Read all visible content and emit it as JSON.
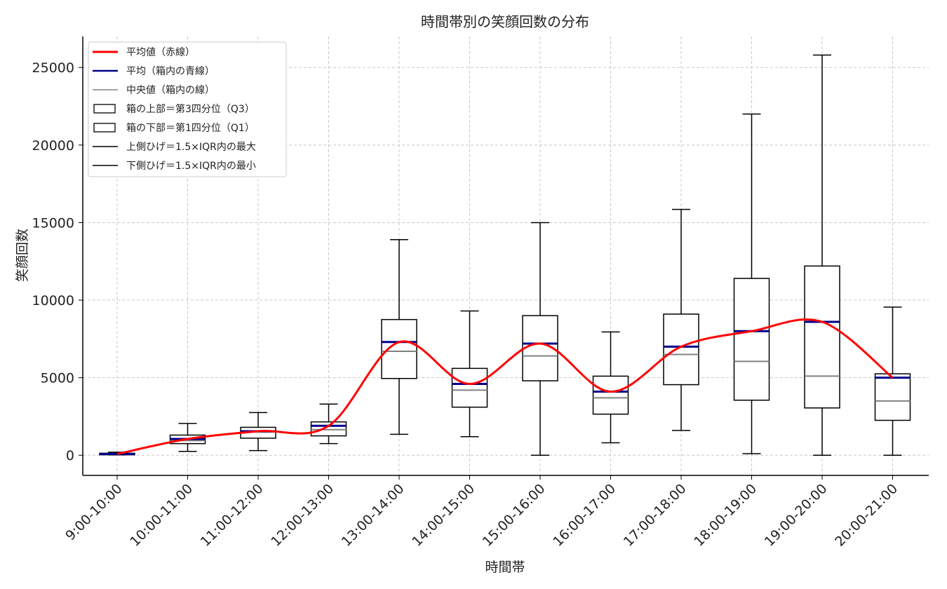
{
  "chart_data": {
    "type": "box",
    "title": "時間帯別の笑顔回数の分布",
    "xlabel": "時間帯",
    "ylabel": "笑顔回数",
    "ylim": [
      -1300,
      27000
    ],
    "yticks": [
      0,
      5000,
      10000,
      15000,
      20000,
      25000
    ],
    "grid": true,
    "legend_position": "top-left",
    "categories": [
      "9:00-10:00",
      "10:00-11:00",
      "11:00-12:00",
      "12:00-13:00",
      "13:00-14:00",
      "14:00-15:00",
      "15:00-16:00",
      "16:00-17:00",
      "17:00-18:00",
      "18:00-19:00",
      "19:00-20:00",
      "20:00-21:00"
    ],
    "boxes": [
      {
        "whisker_low": 20,
        "q1": 30,
        "median": 60,
        "q3": 130,
        "whisker_high": 200,
        "mean": 80
      },
      {
        "whisker_low": 250,
        "q1": 750,
        "median": 950,
        "q3": 1300,
        "whisker_high": 2050,
        "mean": 1050
      },
      {
        "whisker_low": 300,
        "q1": 1100,
        "median": 1500,
        "q3": 1800,
        "whisker_high": 2750,
        "mean": 1550
      },
      {
        "whisker_low": 750,
        "q1": 1250,
        "median": 1650,
        "q3": 2150,
        "whisker_high": 3300,
        "mean": 1900
      },
      {
        "whisker_low": 1350,
        "q1": 4950,
        "median": 6700,
        "q3": 8750,
        "whisker_high": 13900,
        "mean": 7300
      },
      {
        "whisker_low": 1200,
        "q1": 3100,
        "median": 4200,
        "q3": 5600,
        "whisker_high": 9300,
        "mean": 4600
      },
      {
        "whisker_low": 0,
        "q1": 4800,
        "median": 6400,
        "q3": 9000,
        "whisker_high": 15000,
        "mean": 7200
      },
      {
        "whisker_low": 800,
        "q1": 2650,
        "median": 3700,
        "q3": 5100,
        "whisker_high": 7950,
        "mean": 4100
      },
      {
        "whisker_low": 1600,
        "q1": 4550,
        "median": 6500,
        "q3": 9100,
        "whisker_high": 15850,
        "mean": 7000
      },
      {
        "whisker_low": 100,
        "q1": 3550,
        "median": 6050,
        "q3": 11400,
        "whisker_high": 22000,
        "mean": 8000
      },
      {
        "whisker_low": 0,
        "q1": 3050,
        "median": 5100,
        "q3": 12200,
        "whisker_high": 25800,
        "mean": 8600
      },
      {
        "whisker_low": 0,
        "q1": 2250,
        "median": 3500,
        "q3": 5250,
        "whisker_high": 9550,
        "mean": 5000
      }
    ],
    "mean_line_color": "#ff0000",
    "box_mean_color": "#00008b",
    "median_color": "#808080",
    "box_edge_color": "#000000",
    "legend": [
      {
        "label": "平均値（赤線）",
        "kind": "line-red"
      },
      {
        "label": "平均（箱内の青線）",
        "kind": "line-blue"
      },
      {
        "label": "中央値（箱内の線）",
        "kind": "line-gray"
      },
      {
        "label": "箱の上部＝第3四分位（Q3）",
        "kind": "box"
      },
      {
        "label": "箱の下部＝第1四分位（Q1）",
        "kind": "box"
      },
      {
        "label": "上側ひげ＝1.5×IQR内の最大",
        "kind": "line-black"
      },
      {
        "label": "下側ひげ＝1.5×IQR内の最小",
        "kind": "line-black"
      }
    ]
  }
}
